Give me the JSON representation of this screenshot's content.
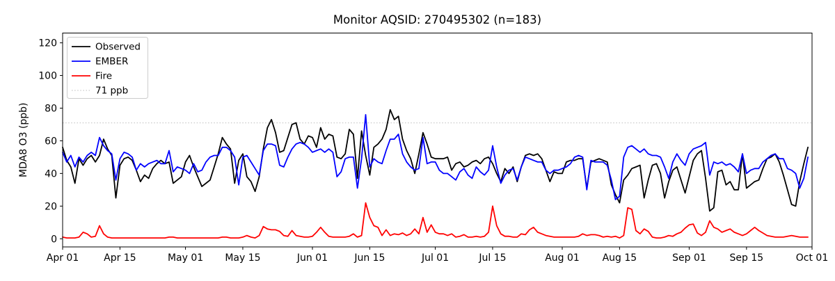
{
  "figure": {
    "title": "Monitor AQSID: 270495302 (n=183)"
  },
  "chart_data": {
    "type": "line",
    "title": "Monitor AQSID: 270495302 (n=183)",
    "xlabel": "",
    "ylabel": "MDA8 O3 (ppb)",
    "x_start": "Apr 01",
    "x_end": "Oct 01",
    "n_points": 183,
    "x_tick_labels": [
      "Apr 01",
      "Apr 15",
      "May 01",
      "May 15",
      "Jun 01",
      "Jun 15",
      "Jul 01",
      "Jul 15",
      "Aug 01",
      "Aug 15",
      "Sep 01",
      "Sep 15",
      "Oct 01"
    ],
    "x_tick_days": [
      0,
      14,
      30,
      44,
      61,
      75,
      91,
      105,
      122,
      136,
      153,
      167,
      183
    ],
    "y_ticks": [
      0,
      20,
      40,
      60,
      80,
      100,
      120
    ],
    "ylim": [
      -5,
      126
    ],
    "xlim_days": [
      0,
      183
    ],
    "grid": "off",
    "legend_position": "upper-left",
    "threshold": {
      "label": "71 ppb",
      "value": 71,
      "color": "#c9c9c9",
      "style": "dotted"
    },
    "series": [
      {
        "name": "Observed",
        "color": "#000000",
        "values": [
          56,
          48,
          44,
          34,
          49,
          45,
          49,
          51,
          47,
          51,
          61,
          55,
          51,
          25,
          45,
          49,
          50,
          48,
          42,
          35,
          39,
          37,
          43,
          46,
          48,
          46,
          47,
          34,
          36,
          38,
          47,
          51,
          44,
          38,
          32,
          34,
          36,
          44,
          52,
          62,
          58,
          55,
          34,
          48,
          52,
          38,
          35,
          29,
          38,
          55,
          68,
          73,
          65,
          53,
          54,
          62,
          70,
          71,
          61,
          58,
          63,
          62,
          56,
          68,
          61,
          64,
          63,
          50,
          49,
          52,
          67,
          64,
          37,
          66,
          51,
          39,
          56,
          58,
          61,
          67,
          79,
          73,
          75,
          61,
          54,
          49,
          40,
          52,
          65,
          58,
          50,
          49,
          49,
          49,
          50,
          42,
          46,
          47,
          44,
          45,
          47,
          48,
          46,
          49,
          50,
          46,
          40,
          35,
          43,
          40,
          44,
          35,
          44,
          51,
          52,
          51,
          52,
          49,
          42,
          35,
          41,
          40,
          40,
          47,
          48,
          48,
          49,
          49,
          31,
          47,
          48,
          49,
          48,
          47,
          33,
          27,
          22,
          36,
          39,
          43,
          44,
          45,
          25,
          36,
          45,
          46,
          40,
          25,
          35,
          42,
          44,
          36,
          28,
          38,
          48,
          52,
          54,
          37,
          17,
          19,
          41,
          42,
          33,
          35,
          30,
          30,
          52,
          31,
          33,
          35,
          36,
          43,
          49,
          50,
          52,
          47,
          39,
          30,
          21,
          20,
          35,
          46,
          56
        ]
      },
      {
        "name": "EMBER",
        "color": "#0000ff",
        "values": [
          53,
          47,
          51,
          44,
          50,
          47,
          51,
          53,
          51,
          62,
          57,
          54,
          52,
          36,
          49,
          53,
          52,
          50,
          42,
          46,
          44,
          46,
          47,
          48,
          46,
          46,
          54,
          41,
          44,
          43,
          42,
          40,
          46,
          41,
          42,
          47,
          50,
          51,
          51,
          56,
          56,
          54,
          50,
          33,
          50,
          51,
          47,
          43,
          39,
          54,
          58,
          58,
          57,
          45,
          44,
          50,
          55,
          58,
          59,
          58,
          56,
          53,
          54,
          55,
          53,
          55,
          53,
          38,
          41,
          49,
          50,
          50,
          31,
          49,
          76,
          44,
          49,
          47,
          46,
          54,
          61,
          61,
          64,
          52,
          47,
          44,
          42,
          43,
          62,
          46,
          47,
          47,
          42,
          40,
          40,
          38,
          36,
          41,
          43,
          39,
          37,
          44,
          41,
          39,
          42,
          57,
          44,
          34,
          39,
          42,
          43,
          36,
          44,
          50,
          49,
          48,
          47,
          47,
          42,
          40,
          42,
          42,
          43,
          44,
          46,
          50,
          51,
          50,
          30,
          48,
          47,
          47,
          47,
          45,
          36,
          24,
          26,
          50,
          56,
          57,
          55,
          53,
          55,
          52,
          51,
          51,
          50,
          44,
          37,
          47,
          52,
          48,
          45,
          52,
          55,
          56,
          57,
          59,
          39,
          47,
          46,
          47,
          45,
          46,
          44,
          41,
          52,
          40,
          42,
          43,
          43,
          47,
          49,
          51,
          52,
          49,
          49,
          43,
          42,
          40,
          31,
          37,
          50
        ]
      },
      {
        "name": "Fire",
        "color": "#ff0000",
        "values": [
          1,
          0.5,
          0.5,
          0.5,
          1,
          4,
          3,
          1,
          1.5,
          8,
          3,
          1,
          0.5,
          0.5,
          0.5,
          0.5,
          0.5,
          0.5,
          0.5,
          0.5,
          0.5,
          0.5,
          0.5,
          0.5,
          0.5,
          0.5,
          1,
          1,
          0.5,
          0.5,
          0.5,
          0.5,
          0.5,
          0.5,
          0.5,
          0.5,
          0.5,
          0.5,
          0.5,
          1,
          1,
          0.5,
          0.5,
          0.5,
          1,
          2,
          1,
          0.5,
          2,
          7.5,
          6,
          5.5,
          5.5,
          4.5,
          2,
          1.5,
          5,
          2,
          1.5,
          1,
          1,
          1.5,
          4,
          7,
          4,
          1.5,
          1,
          1,
          1,
          1,
          1.5,
          3,
          1,
          2,
          22,
          13,
          8,
          7,
          2,
          5.5,
          2,
          3,
          2.5,
          3.5,
          2,
          3,
          6,
          3,
          13,
          4,
          8.5,
          4,
          3,
          3,
          2,
          3,
          1,
          1.5,
          2.5,
          1,
          1,
          1.5,
          1,
          1.5,
          4,
          20,
          8,
          3,
          1.5,
          1.5,
          1,
          1,
          3,
          2.5,
          5.5,
          7,
          4,
          3,
          2,
          1.5,
          1,
          1,
          1,
          1,
          1,
          1,
          1.5,
          3,
          2,
          2.5,
          2.5,
          2,
          1,
          1.5,
          1,
          1.5,
          0.5,
          2,
          19,
          18,
          5,
          3,
          6,
          4.5,
          1,
          0.5,
          0.5,
          1,
          2,
          1.5,
          3,
          4,
          6.5,
          8.5,
          9,
          3.5,
          2,
          4,
          11,
          7,
          6,
          4,
          5,
          6,
          4,
          3,
          2,
          3,
          5,
          7,
          5,
          3.5,
          2,
          1.5,
          1,
          1,
          1,
          1.5,
          2,
          1.5,
          1,
          1,
          1
        ]
      }
    ]
  }
}
